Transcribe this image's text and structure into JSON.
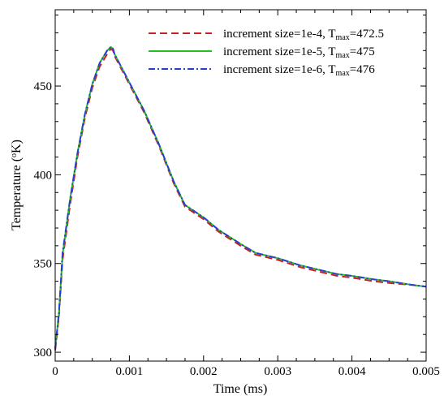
{
  "chart_data": {
    "type": "line",
    "title": "",
    "xlabel": "Time (ms)",
    "ylabel_parts": {
      "main": "Temperature (",
      "sup": "o",
      "unit": "K)"
    },
    "xlim": [
      0,
      0.005
    ],
    "ylim": [
      295,
      493
    ],
    "xticks": [
      0,
      0.001,
      0.002,
      0.003,
      0.004,
      0.005
    ],
    "xtick_labels": [
      "0",
      "0.001",
      "0.002",
      "0.003",
      "0.004",
      "0.005"
    ],
    "yticks": [
      300,
      350,
      400,
      450
    ],
    "ytick_labels": [
      "300",
      "350",
      "400",
      "450"
    ],
    "grid": false,
    "legend_position": "top-right",
    "series": [
      {
        "legend_prefix": "increment size=1e-4, T",
        "legend_sub": "max",
        "legend_suffix": "=472.5",
        "color": "#cc1f1f",
        "dash": "dashed",
        "x": [
          0,
          5e-05,
          0.0001,
          0.0002,
          0.0003,
          0.0004,
          0.0005,
          0.0006,
          0.0007,
          0.00075,
          0.00078,
          0.0008,
          0.0009,
          0.001,
          0.0012,
          0.0014,
          0.0016,
          0.00175,
          0.002,
          0.0022,
          0.0025,
          0.0027,
          0.0028,
          0.003,
          0.0033,
          0.0035,
          0.0038,
          0.004,
          0.0043,
          0.0045,
          0.0048,
          0.005
        ],
        "y": [
          301,
          320,
          352,
          383,
          410,
          432,
          449,
          461,
          468,
          471,
          470,
          467,
          459,
          451,
          435,
          416,
          395,
          382,
          375,
          368,
          360,
          355,
          354,
          352,
          348,
          346,
          343,
          342,
          340,
          339,
          338,
          337
        ]
      },
      {
        "legend_prefix": "increment size=1e-5, T",
        "legend_sub": "max",
        "legend_suffix": "=475",
        "color": "#22c022",
        "dash": "solid",
        "x": [
          0,
          5e-05,
          0.0001,
          0.0002,
          0.0003,
          0.0004,
          0.0005,
          0.0006,
          0.0007,
          0.00075,
          0.00078,
          0.0008,
          0.0009,
          0.001,
          0.0012,
          0.0014,
          0.0016,
          0.00175,
          0.002,
          0.0022,
          0.0025,
          0.0027,
          0.0028,
          0.003,
          0.0033,
          0.0035,
          0.0038,
          0.004,
          0.0043,
          0.0045,
          0.0048,
          0.005
        ],
        "y": [
          302,
          322,
          355,
          386,
          412,
          434,
          451,
          463,
          470,
          472,
          471,
          468,
          460,
          452,
          436,
          417,
          396,
          383,
          376,
          369,
          361,
          356,
          355,
          353,
          349,
          347,
          344,
          343,
          341,
          340,
          338,
          337
        ]
      },
      {
        "legend_prefix": "increment size=1e-6, T",
        "legend_sub": "max",
        "legend_suffix": "=476",
        "color": "#2a3fd0",
        "dash": "dashdot",
        "x": [
          0,
          5e-05,
          0.0001,
          0.0002,
          0.0003,
          0.0004,
          0.0005,
          0.0006,
          0.0007,
          0.00075,
          0.00078,
          0.0008,
          0.0009,
          0.001,
          0.0012,
          0.0014,
          0.0016,
          0.00175,
          0.002,
          0.0022,
          0.0025,
          0.0027,
          0.0028,
          0.003,
          0.0033,
          0.0035,
          0.0038,
          0.004,
          0.0043,
          0.0045,
          0.0048,
          0.005
        ],
        "y": [
          302,
          322,
          356,
          386,
          412,
          434,
          451,
          463,
          470,
          472,
          471,
          468,
          460,
          452,
          436,
          417,
          396,
          383,
          376,
          369,
          361,
          356,
          355,
          353,
          349,
          347,
          344,
          343,
          341,
          340,
          338,
          337
        ]
      }
    ]
  }
}
